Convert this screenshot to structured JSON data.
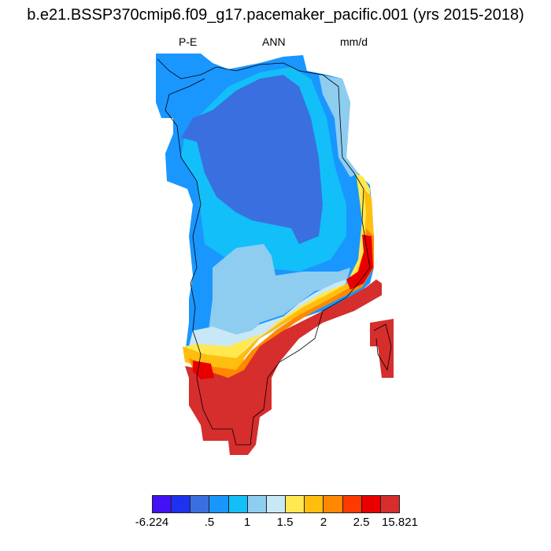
{
  "title": "b.e21.BSSP370cmip6.f09_g17.pacemaker_pacific.001 (yrs 2015-2018)",
  "left_label": "P-E",
  "center_label": "ANN",
  "right_label": "mm/d",
  "colorbar": {
    "colors": [
      "#4212f5",
      "#1e32ee",
      "#3a6fe0",
      "#1a96ff",
      "#12bff8",
      "#8ecdef",
      "#c8e8f8",
      "#ffe850",
      "#ffbe10",
      "#ff8800",
      "#ff3a00",
      "#e80000",
      "#d62d2d"
    ],
    "labels": [
      "-6.224",
      ".5",
      "1",
      "1.5",
      "2",
      "2.5",
      "15.821"
    ]
  }
}
